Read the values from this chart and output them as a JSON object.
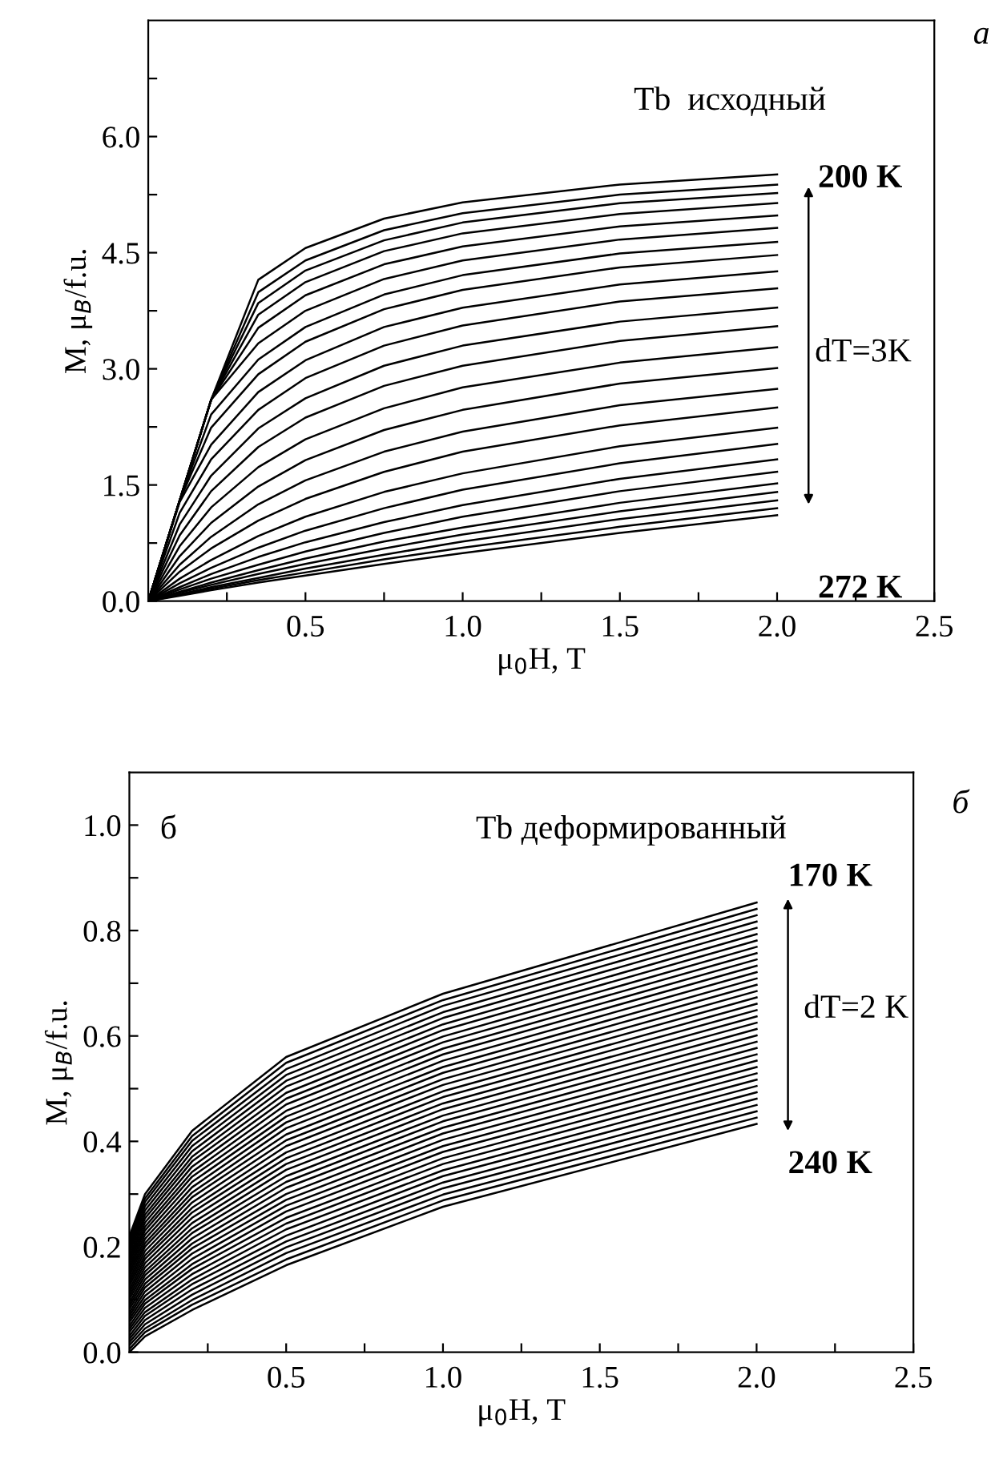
{
  "chart_data": [
    {
      "type": "line",
      "xlabel": "μ$_{0}$H, T",
      "ylabel": "M, μ$_{B}$/f.u.",
      "annotations": [
        "а",
        "Tb  исходный",
        "200 K",
        "272 K",
        "dT=3K"
      ],
      "xlim": [
        0,
        2.5
      ],
      "ylim": [
        0,
        7.5
      ],
      "xticks": [
        {
          "value": 0.25,
          "label": null
        },
        {
          "value": 0.5,
          "label": "0.5"
        },
        {
          "value": 0.75,
          "label": null
        },
        {
          "value": 1.0,
          "label": "1.0"
        },
        {
          "value": 1.25,
          "label": null
        },
        {
          "value": 1.5,
          "label": "1.5"
        },
        {
          "value": 1.75,
          "label": null
        },
        {
          "value": 2.0,
          "label": "2.0"
        },
        {
          "value": 2.25,
          "label": null
        },
        {
          "value": 2.5,
          "label": "2.5"
        }
      ],
      "yticks": [
        {
          "value": 0,
          "label": "0.0"
        },
        {
          "value": 0.75,
          "label": null
        },
        {
          "value": 1.5,
          "label": "1.5"
        },
        {
          "value": 2.25,
          "label": null
        },
        {
          "value": 3.0,
          "label": "3.0"
        },
        {
          "value": 3.75,
          "label": null
        },
        {
          "value": 4.5,
          "label": "4.5"
        },
        {
          "value": 5.25,
          "label": null
        },
        {
          "value": 6.0,
          "label": "6.0"
        },
        {
          "value": 6.75,
          "label": null
        }
      ],
      "grid": false,
      "legend": false,
      "marker": "none",
      "line_style": "solid",
      "x": [
        0,
        0.1,
        0.2,
        0.35,
        0.5,
        0.75,
        1.0,
        1.5,
        2.0
      ],
      "series": [
        {
          "color": "#000000",
          "values": [
            0,
            1.3,
            2.6,
            4.15,
            4.56,
            4.94,
            5.15,
            5.38,
            5.51
          ]
        },
        {
          "color": "#000000",
          "values": [
            0,
            1.3,
            2.6,
            3.99,
            4.4,
            4.79,
            5.01,
            5.25,
            5.38
          ]
        },
        {
          "color": "#000000",
          "values": [
            0,
            1.3,
            2.6,
            3.85,
            4.27,
            4.66,
            4.89,
            5.14,
            5.27
          ]
        },
        {
          "color": "#000000",
          "values": [
            0,
            1.3,
            2.6,
            3.7,
            4.12,
            4.52,
            4.75,
            5.0,
            5.14
          ]
        },
        {
          "color": "#000000",
          "values": [
            0,
            1.3,
            2.6,
            3.53,
            3.95,
            4.35,
            4.58,
            4.84,
            4.98
          ]
        },
        {
          "color": "#000000",
          "values": [
            0,
            1.3,
            2.6,
            3.33,
            3.75,
            4.16,
            4.4,
            4.67,
            4.82
          ]
        },
        {
          "color": "#000000",
          "values": [
            0,
            1.3,
            2.41,
            3.12,
            3.54,
            3.96,
            4.21,
            4.49,
            4.64
          ]
        },
        {
          "color": "#000000",
          "values": [
            0,
            1.3,
            2.24,
            2.93,
            3.35,
            3.77,
            4.02,
            4.31,
            4.47
          ]
        },
        {
          "color": "#000000",
          "values": [
            0,
            1.28,
            2.02,
            2.7,
            3.11,
            3.54,
            3.79,
            4.09,
            4.26
          ]
        },
        {
          "color": "#000000",
          "values": [
            0,
            1.14,
            1.83,
            2.47,
            2.88,
            3.3,
            3.56,
            3.87,
            4.04
          ]
        },
        {
          "color": "#000000",
          "values": [
            0,
            0.99,
            1.62,
            2.23,
            2.62,
            3.04,
            3.3,
            3.61,
            3.79
          ]
        },
        {
          "color": "#000000",
          "values": [
            0,
            0.85,
            1.42,
            1.99,
            2.37,
            2.78,
            3.04,
            3.36,
            3.55
          ]
        },
        {
          "color": "#000000",
          "values": [
            0,
            0.71,
            1.21,
            1.73,
            2.09,
            2.49,
            2.76,
            3.08,
            3.28
          ]
        },
        {
          "color": "#000000",
          "values": [
            0,
            0.58,
            1.01,
            1.48,
            1.82,
            2.21,
            2.47,
            2.81,
            3.01
          ]
        },
        {
          "color": "#000000",
          "values": [
            0,
            0.47,
            0.83,
            1.25,
            1.56,
            1.93,
            2.19,
            2.53,
            2.74
          ]
        },
        {
          "color": "#000000",
          "values": [
            0,
            0.38,
            0.68,
            1.04,
            1.32,
            1.67,
            1.93,
            2.27,
            2.5
          ]
        },
        {
          "color": "#000000",
          "values": [
            0,
            0.29,
            0.53,
            0.84,
            1.09,
            1.41,
            1.65,
            2.0,
            2.24
          ]
        },
        {
          "color": "#000000",
          "values": [
            0,
            0.23,
            0.43,
            0.69,
            0.91,
            1.2,
            1.44,
            1.78,
            2.03
          ]
        },
        {
          "color": "#000000",
          "values": [
            0,
            0.18,
            0.35,
            0.57,
            0.76,
            1.02,
            1.24,
            1.58,
            1.83
          ]
        },
        {
          "color": "#000000",
          "values": [
            0,
            0.15,
            0.29,
            0.47,
            0.64,
            0.88,
            1.09,
            1.42,
            1.67
          ]
        },
        {
          "color": "#000000",
          "values": [
            0,
            0.12,
            0.24,
            0.4,
            0.55,
            0.77,
            0.95,
            1.27,
            1.52
          ]
        },
        {
          "color": "#000000",
          "values": [
            0,
            0.11,
            0.21,
            0.35,
            0.48,
            0.68,
            0.86,
            1.16,
            1.41
          ]
        },
        {
          "color": "#000000",
          "values": [
            0,
            0.09,
            0.18,
            0.3,
            0.42,
            0.6,
            0.77,
            1.06,
            1.3
          ]
        },
        {
          "color": "#000000",
          "values": [
            0,
            0.08,
            0.16,
            0.27,
            0.37,
            0.54,
            0.69,
            0.96,
            1.2
          ]
        },
        {
          "color": "#000000",
          "values": [
            0,
            0.07,
            0.14,
            0.24,
            0.33,
            0.48,
            0.62,
            0.88,
            1.11
          ]
        }
      ]
    },
    {
      "type": "line",
      "xlabel": "μ$_{0}$H, T",
      "ylabel": "M, μ$_{B}$/f.u.",
      "annotations": [
        "б",
        "б",
        "Tb деформированный",
        "170 K",
        "240 K",
        "dT=2 K"
      ],
      "xlim": [
        0,
        2.5
      ],
      "ylim": [
        0,
        1.1
      ],
      "xticks": [
        {
          "value": 0.25,
          "label": null
        },
        {
          "value": 0.5,
          "label": "0.5"
        },
        {
          "value": 0.75,
          "label": null
        },
        {
          "value": 1.0,
          "label": "1.0"
        },
        {
          "value": 1.25,
          "label": null
        },
        {
          "value": 1.5,
          "label": "1.5"
        },
        {
          "value": 1.75,
          "label": null
        },
        {
          "value": 2.0,
          "label": "2.0"
        },
        {
          "value": 2.25,
          "label": null
        },
        {
          "value": 2.5,
          "label": "2.5"
        }
      ],
      "yticks": [
        {
          "value": 0,
          "label": "0.0"
        },
        {
          "value": 0.1,
          "label": null
        },
        {
          "value": 0.2,
          "label": "0.2"
        },
        {
          "value": 0.3,
          "label": null
        },
        {
          "value": 0.4,
          "label": "0.4"
        },
        {
          "value": 0.5,
          "label": null
        },
        {
          "value": 0.6,
          "label": "0.6"
        },
        {
          "value": 0.7,
          "label": null
        },
        {
          "value": 0.8,
          "label": "0.8"
        },
        {
          "value": 0.9,
          "label": null
        },
        {
          "value": 1.0,
          "label": "1.0"
        }
      ],
      "grid": false,
      "legend": false,
      "marker": "none",
      "line_style": "solid",
      "x": [
        0,
        0.05,
        0.2,
        0.5,
        1.0,
        2.0
      ],
      "series": [
        {
          "color": "#000000",
          "values": [
            0.22,
            0.3,
            0.42,
            0.56,
            0.68,
            0.853
          ]
        },
        {
          "color": "#000000",
          "values": [
            0.214,
            0.292,
            0.41,
            0.549,
            0.668,
            0.841
          ]
        },
        {
          "color": "#000000",
          "values": [
            0.207,
            0.285,
            0.401,
            0.537,
            0.657,
            0.829
          ]
        },
        {
          "color": "#000000",
          "values": [
            0.201,
            0.277,
            0.391,
            0.526,
            0.645,
            0.817
          ]
        },
        {
          "color": "#000000",
          "values": [
            0.195,
            0.269,
            0.381,
            0.515,
            0.634,
            0.805
          ]
        },
        {
          "color": "#000000",
          "values": [
            0.189,
            0.261,
            0.371,
            0.504,
            0.622,
            0.793
          ]
        },
        {
          "color": "#000000",
          "values": [
            0.182,
            0.254,
            0.362,
            0.492,
            0.611,
            0.781
          ]
        },
        {
          "color": "#000000",
          "values": [
            0.176,
            0.246,
            0.352,
            0.481,
            0.599,
            0.769
          ]
        },
        {
          "color": "#000000",
          "values": [
            0.17,
            0.238,
            0.342,
            0.47,
            0.588,
            0.757
          ]
        },
        {
          "color": "#000000",
          "values": [
            0.163,
            0.231,
            0.333,
            0.458,
            0.576,
            0.745
          ]
        },
        {
          "color": "#000000",
          "values": [
            0.157,
            0.223,
            0.323,
            0.447,
            0.565,
            0.733
          ]
        },
        {
          "color": "#000000",
          "values": [
            0.151,
            0.215,
            0.313,
            0.436,
            0.553,
            0.721
          ]
        },
        {
          "color": "#000000",
          "values": [
            0.145,
            0.207,
            0.303,
            0.425,
            0.541,
            0.709
          ]
        },
        {
          "color": "#000000",
          "values": [
            0.138,
            0.2,
            0.294,
            0.413,
            0.53,
            0.697
          ]
        },
        {
          "color": "#000000",
          "values": [
            0.132,
            0.192,
            0.284,
            0.402,
            0.518,
            0.685
          ]
        },
        {
          "color": "#000000",
          "values": [
            0.126,
            0.184,
            0.274,
            0.391,
            0.507,
            0.673
          ]
        },
        {
          "color": "#000000",
          "values": [
            0.119,
            0.177,
            0.265,
            0.379,
            0.495,
            0.661
          ]
        },
        {
          "color": "#000000",
          "values": [
            0.113,
            0.169,
            0.255,
            0.368,
            0.484,
            0.649
          ]
        },
        {
          "color": "#000000",
          "values": [
            0.107,
            0.161,
            0.245,
            0.357,
            0.472,
            0.637
          ]
        },
        {
          "color": "#000000",
          "values": [
            0.101,
            0.153,
            0.235,
            0.346,
            0.461,
            0.625
          ]
        },
        {
          "color": "#000000",
          "values": [
            0.094,
            0.146,
            0.226,
            0.334,
            0.449,
            0.613
          ]
        },
        {
          "color": "#000000",
          "values": [
            0.088,
            0.138,
            0.216,
            0.323,
            0.438,
            0.601
          ]
        },
        {
          "color": "#000000",
          "values": [
            0.082,
            0.13,
            0.206,
            0.312,
            0.426,
            0.589
          ]
        },
        {
          "color": "#000000",
          "values": [
            0.075,
            0.123,
            0.197,
            0.3,
            0.415,
            0.577
          ]
        },
        {
          "color": "#000000",
          "values": [
            0.069,
            0.115,
            0.187,
            0.289,
            0.403,
            0.565
          ]
        },
        {
          "color": "#000000",
          "values": [
            0.063,
            0.107,
            0.177,
            0.278,
            0.391,
            0.553
          ]
        },
        {
          "color": "#000000",
          "values": [
            0.057,
            0.099,
            0.167,
            0.267,
            0.38,
            0.541
          ]
        },
        {
          "color": "#000000",
          "values": [
            0.05,
            0.092,
            0.158,
            0.255,
            0.368,
            0.529
          ]
        },
        {
          "color": "#000000",
          "values": [
            0.044,
            0.084,
            0.148,
            0.244,
            0.357,
            0.517
          ]
        },
        {
          "color": "#000000",
          "values": [
            0.038,
            0.076,
            0.138,
            0.233,
            0.345,
            0.505
          ]
        },
        {
          "color": "#000000",
          "values": [
            0.031,
            0.069,
            0.129,
            0.221,
            0.334,
            0.493
          ]
        },
        {
          "color": "#000000",
          "values": [
            0.025,
            0.061,
            0.119,
            0.21,
            0.322,
            0.481
          ]
        },
        {
          "color": "#000000",
          "values": [
            0.019,
            0.053,
            0.109,
            0.199,
            0.311,
            0.469
          ]
        },
        {
          "color": "#000000",
          "values": [
            0.013,
            0.045,
            0.099,
            0.188,
            0.299,
            0.457
          ]
        },
        {
          "color": "#000000",
          "values": [
            0.006,
            0.038,
            0.09,
            0.176,
            0.288,
            0.445
          ]
        },
        {
          "color": "#000000",
          "values": [
            0,
            0.03,
            0.08,
            0.165,
            0.276,
            0.433
          ]
        }
      ]
    }
  ]
}
